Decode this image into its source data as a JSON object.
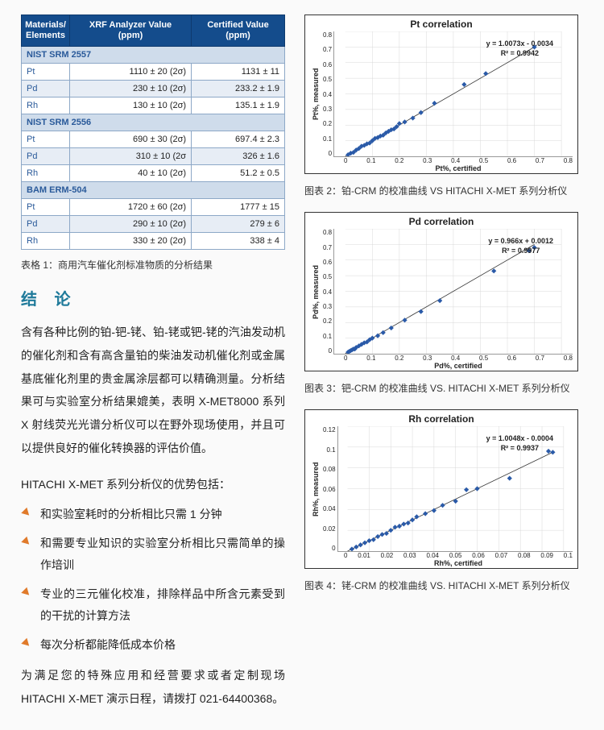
{
  "table": {
    "headers": [
      "Materials/\nElements",
      "XRF Analyzer Value\n(ppm)",
      "Certified Value\n(ppm)"
    ],
    "sections": [
      {
        "name": "NIST SRM 2557",
        "rows": [
          {
            "el": "Pt",
            "xrf": "1110 ± 20 (2σ)",
            "cert": "1131 ± 11",
            "alt": false
          },
          {
            "el": "Pd",
            "xrf": "230 ± 10 (2σ)",
            "cert": "233.2 ± 1.9",
            "alt": true
          },
          {
            "el": "Rh",
            "xrf": "130 ± 10 (2σ)",
            "cert": "135.1 ± 1.9",
            "alt": false
          }
        ]
      },
      {
        "name": "NIST SRM 2556",
        "rows": [
          {
            "el": "Pt",
            "xrf": "690 ± 30 (2σ)",
            "cert": "697.4 ± 2.3",
            "alt": false
          },
          {
            "el": "Pd",
            "xrf": "310 ± 10 (2σ",
            "cert": "326 ± 1.6",
            "alt": true
          },
          {
            "el": "Rh",
            "xrf": "40 ± 10 (2σ)",
            "cert": "51.2 ± 0.5",
            "alt": false
          }
        ]
      },
      {
        "name": "BAM ERM-504",
        "rows": [
          {
            "el": "Pt",
            "xrf": "1720 ± 60 (2σ)",
            "cert": "1777 ± 15",
            "alt": false
          },
          {
            "el": "Pd",
            "xrf": "290 ± 10 (2σ)",
            "cert": "279 ± 6",
            "alt": true
          },
          {
            "el": "Rh",
            "xrf": "330 ± 20 (2σ)",
            "cert": "338 ± 4",
            "alt": false
          }
        ]
      }
    ]
  },
  "table_caption": "表格 1：商用汽车催化剂标准物质的分析结果",
  "conclusion_heading": "结 论",
  "paragraph": "含有各种比例的铂-钯-铑、铂-铑或钯-铑的汽油发动机的催化剂和含有高含量铂的柴油发动机催化剂或金属基底催化剂里的贵金属涂层都可以精确测量。分析结果可与实验室分析结果媲美，表明 X-MET8000 系列 X 射线荧光光谱分析仪可以在野外现场使用，并且可以提供良好的催化转换器的评估价值。",
  "lead": "HITACHI X-MET 系列分析仪的优势包括：",
  "bullets": [
    "和实验室耗时的分析相比只需 1 分钟",
    "和需要专业知识的实验室分析相比只需简单的操作培训",
    "专业的三元催化校准，排除样品中所含元素受到的干扰的计算方法",
    "每次分析都能降低成本价格"
  ],
  "closing": "为满足您的特殊应用和经营要求或者定制现场 HITACHI X-MET 演示日程，请拨打  021-64400368。",
  "charts": [
    {
      "title": "Pt correlation",
      "ylabel": "Pt%, measured",
      "xlabel": "Pt%, certified",
      "eq1": "y = 1.0073x - 0.0034",
      "eq2": "R² = 0.9942",
      "xmax": 0.8,
      "ymax": 0.8,
      "xticks": [
        "0",
        "0.1",
        "0.2",
        "0.3",
        "0.4",
        "0.5",
        "0.6",
        "0.7",
        "0.8"
      ],
      "yticks": [
        "0.8",
        "0.7",
        "0.6",
        "0.5",
        "0.4",
        "0.3",
        "0.2",
        "0.1",
        "0"
      ],
      "grid_color": "#d8d8d8",
      "point_color": "#2a5aa8",
      "points": [
        [
          0.01,
          0.01
        ],
        [
          0.02,
          0.02
        ],
        [
          0.03,
          0.025
        ],
        [
          0.04,
          0.04
        ],
        [
          0.05,
          0.05
        ],
        [
          0.06,
          0.065
        ],
        [
          0.07,
          0.07
        ],
        [
          0.08,
          0.08
        ],
        [
          0.09,
          0.085
        ],
        [
          0.1,
          0.1
        ],
        [
          0.11,
          0.115
        ],
        [
          0.12,
          0.12
        ],
        [
          0.13,
          0.13
        ],
        [
          0.14,
          0.135
        ],
        [
          0.15,
          0.15
        ],
        [
          0.16,
          0.16
        ],
        [
          0.17,
          0.17
        ],
        [
          0.18,
          0.175
        ],
        [
          0.19,
          0.19
        ],
        [
          0.2,
          0.21
        ],
        [
          0.22,
          0.22
        ],
        [
          0.25,
          0.245
        ],
        [
          0.28,
          0.28
        ],
        [
          0.33,
          0.34
        ],
        [
          0.44,
          0.46
        ],
        [
          0.52,
          0.53
        ],
        [
          0.7,
          0.7
        ]
      ],
      "caption": "图表 2：铂-CRM 的校准曲线 VS HITACHI X-MET 系列分析仪"
    },
    {
      "title": "Pd correlation",
      "ylabel": "Pd%, measured",
      "xlabel": "Pd%, certified",
      "eq1": "y = 0.966x + 0.0012",
      "eq2": "R² = 0.9977",
      "xmax": 0.8,
      "ymax": 0.8,
      "xticks": [
        "0",
        "0.1",
        "0.2",
        "0.3",
        "0.4",
        "0.5",
        "0.6",
        "0.7",
        "0.8"
      ],
      "yticks": [
        "0.8",
        "0.7",
        "0.6",
        "0.5",
        "0.4",
        "0.3",
        "0.2",
        "0.1",
        "0"
      ],
      "grid_color": "#d8d8d8",
      "point_color": "#2a5aa8",
      "points": [
        [
          0.01,
          0.01
        ],
        [
          0.015,
          0.015
        ],
        [
          0.02,
          0.02
        ],
        [
          0.025,
          0.025
        ],
        [
          0.03,
          0.03
        ],
        [
          0.035,
          0.03
        ],
        [
          0.04,
          0.04
        ],
        [
          0.05,
          0.05
        ],
        [
          0.06,
          0.06
        ],
        [
          0.07,
          0.07
        ],
        [
          0.08,
          0.075
        ],
        [
          0.09,
          0.09
        ],
        [
          0.1,
          0.1
        ],
        [
          0.12,
          0.115
        ],
        [
          0.14,
          0.135
        ],
        [
          0.17,
          0.165
        ],
        [
          0.22,
          0.215
        ],
        [
          0.28,
          0.27
        ],
        [
          0.35,
          0.34
        ],
        [
          0.55,
          0.53
        ],
        [
          0.68,
          0.66
        ],
        [
          0.7,
          0.68
        ]
      ],
      "caption": "图表 3：钯-CRM 的校准曲线 VS. HITACHI X-MET 系列分析仪"
    },
    {
      "title": "Rh correlation",
      "ylabel": "Rh%, measured",
      "xlabel": "Rh%, certified",
      "eq1": "y = 1.0048x - 0.0004",
      "eq2": "R² = 0.9937",
      "xmax": 0.1,
      "ymax": 0.12,
      "xticks": [
        "0",
        "0.01",
        "0.02",
        "0.03",
        "0.04",
        "0.05",
        "0.06",
        "0.07",
        "0.08",
        "0.09",
        "0.1"
      ],
      "yticks": [
        "0.12",
        "0.1",
        "0.08",
        "0.06",
        "0.04",
        "0.02",
        "0"
      ],
      "grid_color": "#d8d8d8",
      "point_color": "#2a5aa8",
      "points": [
        [
          0.002,
          0.002
        ],
        [
          0.004,
          0.004
        ],
        [
          0.006,
          0.006
        ],
        [
          0.008,
          0.008
        ],
        [
          0.01,
          0.01
        ],
        [
          0.012,
          0.011
        ],
        [
          0.014,
          0.014
        ],
        [
          0.016,
          0.016
        ],
        [
          0.018,
          0.017
        ],
        [
          0.02,
          0.02
        ],
        [
          0.022,
          0.023
        ],
        [
          0.024,
          0.024
        ],
        [
          0.026,
          0.026
        ],
        [
          0.028,
          0.027
        ],
        [
          0.03,
          0.03
        ],
        [
          0.032,
          0.033
        ],
        [
          0.036,
          0.036
        ],
        [
          0.04,
          0.039
        ],
        [
          0.044,
          0.044
        ],
        [
          0.05,
          0.048
        ],
        [
          0.055,
          0.059
        ],
        [
          0.06,
          0.06
        ],
        [
          0.075,
          0.07
        ],
        [
          0.093,
          0.096
        ],
        [
          0.095,
          0.095
        ]
      ],
      "caption": "图表 4：铑-CRM 的校准曲线 VS. HITACHI X-MET 系列分析仪"
    }
  ]
}
